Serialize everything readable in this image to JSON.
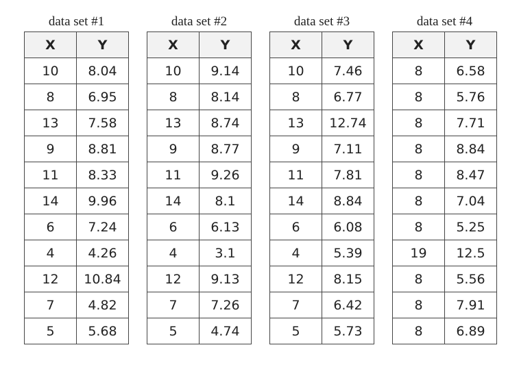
{
  "tables": [
    {
      "title": "data set #1",
      "header": [
        "X",
        "Y"
      ],
      "rows": [
        [
          10,
          8.04
        ],
        [
          8,
          6.95
        ],
        [
          13,
          7.58
        ],
        [
          9,
          8.81
        ],
        [
          11,
          8.33
        ],
        [
          14,
          9.96
        ],
        [
          6,
          7.24
        ],
        [
          4,
          4.26
        ],
        [
          12,
          10.84
        ],
        [
          7,
          4.82
        ],
        [
          5,
          5.68
        ]
      ]
    },
    {
      "title": "data set #2",
      "header": [
        "X",
        "Y"
      ],
      "rows": [
        [
          10,
          9.14
        ],
        [
          8,
          8.14
        ],
        [
          13,
          8.74
        ],
        [
          9,
          8.77
        ],
        [
          11,
          9.26
        ],
        [
          14,
          8.1
        ],
        [
          6,
          6.13
        ],
        [
          4,
          3.1
        ],
        [
          12,
          9.13
        ],
        [
          7,
          7.26
        ],
        [
          5,
          4.74
        ]
      ]
    },
    {
      "title": "data set #3",
      "header": [
        "X",
        "Y"
      ],
      "rows": [
        [
          10,
          7.46
        ],
        [
          8,
          6.77
        ],
        [
          13,
          12.74
        ],
        [
          9,
          7.11
        ],
        [
          11,
          7.81
        ],
        [
          14,
          8.84
        ],
        [
          6,
          6.08
        ],
        [
          4,
          5.39
        ],
        [
          12,
          8.15
        ],
        [
          7,
          6.42
        ],
        [
          5,
          5.73
        ]
      ]
    },
    {
      "title": "data set #4",
      "header": [
        "X",
        "Y"
      ],
      "rows": [
        [
          8,
          6.58
        ],
        [
          8,
          5.76
        ],
        [
          8,
          7.71
        ],
        [
          8,
          8.84
        ],
        [
          8,
          8.47
        ],
        [
          8,
          7.04
        ],
        [
          8,
          5.25
        ],
        [
          19,
          12.5
        ],
        [
          8,
          5.56
        ],
        [
          8,
          7.91
        ],
        [
          8,
          6.89
        ]
      ]
    }
  ]
}
